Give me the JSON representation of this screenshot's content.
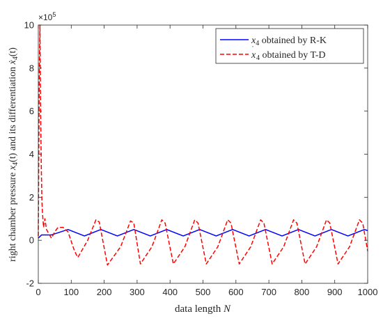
{
  "chart_data": {
    "type": "line",
    "title": "",
    "xlabel_text": "data length ",
    "xlabel_var": "N",
    "ylabel_prefix": "right chamber pressure ",
    "ylabel_mid": "(t) and its differentiation ",
    "ylabel_suffix": "(t)",
    "y_multiplier": "×10",
    "y_multiplier_exp": "5",
    "xlim": [
      0,
      1000
    ],
    "ylim": [
      -2,
      10
    ],
    "x_ticks": [
      "0",
      "100",
      "200",
      "300",
      "400",
      "500",
      "600",
      "700",
      "800",
      "900",
      "1000"
    ],
    "y_ticks": [
      "-2",
      "0",
      "2",
      "4",
      "6",
      "8",
      "10"
    ],
    "grid": false,
    "legend_position": "top-right",
    "series": [
      {
        "name": "x4 obtained by R-K",
        "legend_var": "x",
        "legend_sub": "4",
        "legend_rest": " obtained by R-K",
        "color": "#0000ff",
        "style": "solid",
        "x": [
          0,
          10,
          40,
          90,
          140,
          190,
          240,
          290,
          340,
          390,
          440,
          490,
          540,
          590,
          640,
          690,
          740,
          790,
          840,
          890,
          940,
          990,
          1000
        ],
        "values": [
          0.1,
          0.25,
          0.25,
          0.5,
          0.2,
          0.5,
          0.2,
          0.5,
          0.2,
          0.5,
          0.2,
          0.5,
          0.2,
          0.5,
          0.2,
          0.5,
          0.2,
          0.5,
          0.2,
          0.5,
          0.2,
          0.5,
          0.45
        ]
      },
      {
        "name": "x4 dot obtained by T-D",
        "legend_var": "x",
        "legend_sub": "4",
        "legend_rest": " obtained by T-D",
        "color": "#ff0000",
        "style": "dashed",
        "x": [
          0,
          3,
          5,
          7,
          9,
          11,
          13,
          16,
          20,
          25,
          32,
          40,
          50,
          60,
          75,
          90,
          110,
          120,
          150,
          175,
          185,
          210,
          250,
          280,
          290,
          310,
          345,
          375,
          385,
          410,
          445,
          475,
          485,
          510,
          545,
          575,
          585,
          610,
          645,
          675,
          685,
          710,
          745,
          775,
          785,
          810,
          845,
          875,
          885,
          910,
          945,
          975,
          985,
          1000
        ],
        "values": [
          0.2,
          8.0,
          10.0,
          6.0,
          3.5,
          1.8,
          1.2,
          0.6,
          1.0,
          0.5,
          0.3,
          0.1,
          0.4,
          0.6,
          0.6,
          0.4,
          -0.5,
          -0.8,
          0.0,
          0.95,
          0.85,
          -1.15,
          -0.3,
          0.9,
          0.8,
          -1.1,
          -0.3,
          0.95,
          0.8,
          -1.1,
          -0.3,
          0.95,
          0.8,
          -1.1,
          -0.3,
          0.95,
          0.8,
          -1.1,
          -0.3,
          0.95,
          0.8,
          -1.1,
          -0.3,
          0.95,
          0.8,
          -1.1,
          -0.3,
          0.95,
          0.8,
          -1.1,
          -0.3,
          0.95,
          0.8,
          -0.5
        ]
      }
    ]
  }
}
